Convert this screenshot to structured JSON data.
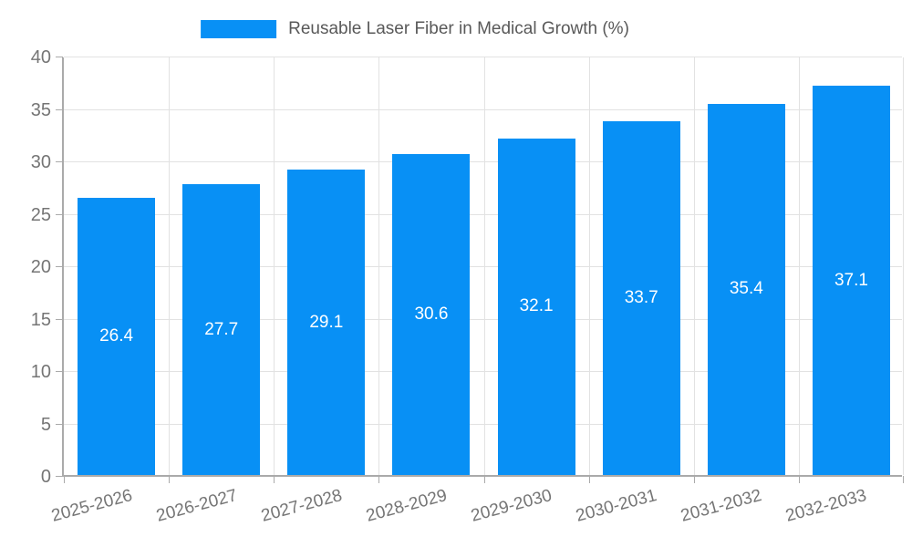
{
  "legend": {
    "label": "Reusable Laser Fiber in Medical Growth (%)"
  },
  "chart_data": {
    "type": "bar",
    "title": "Reusable Laser Fiber in Medical Growth (%)",
    "categories": [
      "2025-2026",
      "2026-2027",
      "2027-2028",
      "2028-2029",
      "2029-2030",
      "2030-2031",
      "2031-2032",
      "2032-2033"
    ],
    "values": [
      26.4,
      27.7,
      29.1,
      30.6,
      32.1,
      33.7,
      35.4,
      37.1
    ],
    "value_labels": [
      "26.4",
      "27.7",
      "29.1",
      "30.6",
      "32.1",
      "33.7",
      "35.4",
      "37.1"
    ],
    "xlabel": "",
    "ylabel": "",
    "ylim": [
      0,
      40
    ],
    "yticks": [
      0,
      5,
      10,
      15,
      20,
      25,
      30,
      35,
      40
    ],
    "grid": true,
    "legend_position": "top-center",
    "colors": {
      "bar": "#0890f5",
      "grid": "#e2e2e2",
      "axis": "#aaaaaa",
      "tick_text": "#757575",
      "value_label": "#ffffff"
    }
  }
}
